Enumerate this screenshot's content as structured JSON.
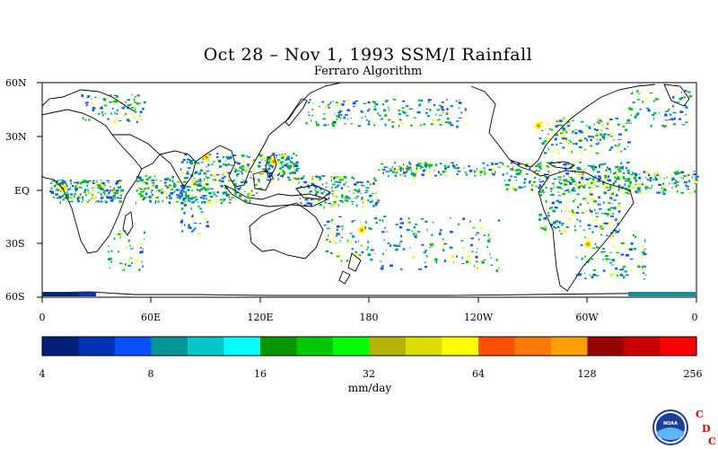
{
  "title": "Oct 28 – Nov 1, 1993 SSM/I Rainfall",
  "subtitle": "Ferraro Algorithm",
  "latitude_labels": [
    "60N",
    "30N",
    "EQ",
    "30S",
    "60S"
  ],
  "longitude_labels": [
    "0",
    "60E",
    "120E",
    "180",
    "120W",
    "60W",
    "0"
  ],
  "colorbar": {
    "units": "mm/day",
    "tick_labels": [
      "4",
      "8",
      "16",
      "32",
      "64",
      "128",
      "256"
    ],
    "colors": [
      "#00207a",
      "#0032b4",
      "#0a50ff",
      "#009696",
      "#00c8c8",
      "#00ffff",
      "#009600",
      "#00c800",
      "#00ff00",
      "#b4b400",
      "#dcdc00",
      "#ffff00",
      "#ff5000",
      "#ff7800",
      "#ffa000",
      "#960000",
      "#c80000",
      "#ff0000"
    ]
  },
  "logo": {
    "agency_text": "NOAA",
    "cdc_letters": [
      "C",
      "D",
      "C"
    ]
  },
  "map_colors": {
    "land_outline": "#000000",
    "rain_blue": "#0a50ff",
    "rain_teal": "#009696",
    "rain_green": "#00c800",
    "rain_yellow": "#ffff00",
    "rain_orange": "#ff7800"
  }
}
